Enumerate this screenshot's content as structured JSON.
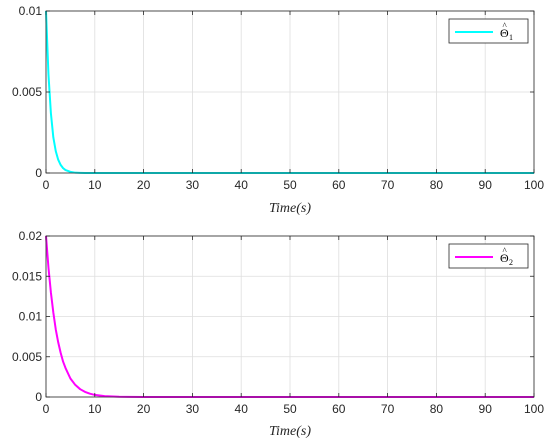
{
  "chart_data": [
    {
      "type": "line",
      "xlabel": "Time(s)",
      "ylabel": "",
      "xlim": [
        0,
        100
      ],
      "ylim": [
        0,
        0.01
      ],
      "xticks": [
        "0",
        "10",
        "20",
        "30",
        "40",
        "50",
        "60",
        "70",
        "80",
        "90",
        "100"
      ],
      "yticks": [
        "0",
        "0.005",
        "0.01"
      ],
      "grid": true,
      "legend_position": "top-right",
      "series": [
        {
          "name": "Θ̂1",
          "color": "#00FFFF",
          "x": [
            0,
            0.5,
            1,
            1.5,
            2,
            2.5,
            3,
            3.5,
            4,
            5,
            6,
            7,
            8,
            10,
            15,
            20,
            30,
            40,
            50,
            60,
            70,
            80,
            90,
            100
          ],
          "y": [
            0.01,
            0.0061,
            0.0037,
            0.0022,
            0.00135,
            0.00082,
            0.0005,
            0.0003,
            0.00018,
            7e-05,
            2e-05,
            1e-05,
            0,
            0,
            0,
            0,
            0,
            0,
            0,
            0,
            0,
            0,
            0,
            0
          ]
        }
      ]
    },
    {
      "type": "line",
      "xlabel": "Time(s)",
      "ylabel": "",
      "xlim": [
        0,
        100
      ],
      "ylim": [
        0,
        0.02
      ],
      "xticks": [
        "0",
        "10",
        "20",
        "30",
        "40",
        "50",
        "60",
        "70",
        "80",
        "90",
        "100"
      ],
      "yticks": [
        "0",
        "0.005",
        "0.01",
        "0.015",
        "0.02"
      ],
      "grid": true,
      "legend_position": "top-right",
      "series": [
        {
          "name": "Θ̂2",
          "color": "#FF00FF",
          "x": [
            0,
            0.5,
            1,
            1.5,
            2,
            2.5,
            3,
            3.5,
            4,
            5,
            6,
            7,
            8,
            9,
            10,
            12,
            15,
            20,
            30,
            40,
            50,
            60,
            70,
            80,
            90,
            100
          ],
          "y": [
            0.02,
            0.0161,
            0.013,
            0.0105,
            0.0084,
            0.0068,
            0.0055,
            0.0044,
            0.0036,
            0.0023,
            0.0015,
            0.00097,
            0.00063,
            0.00041,
            0.00026,
            0.00011,
            3e-05,
            0,
            0,
            0,
            0,
            0,
            0,
            0,
            0,
            0
          ]
        }
      ]
    }
  ]
}
